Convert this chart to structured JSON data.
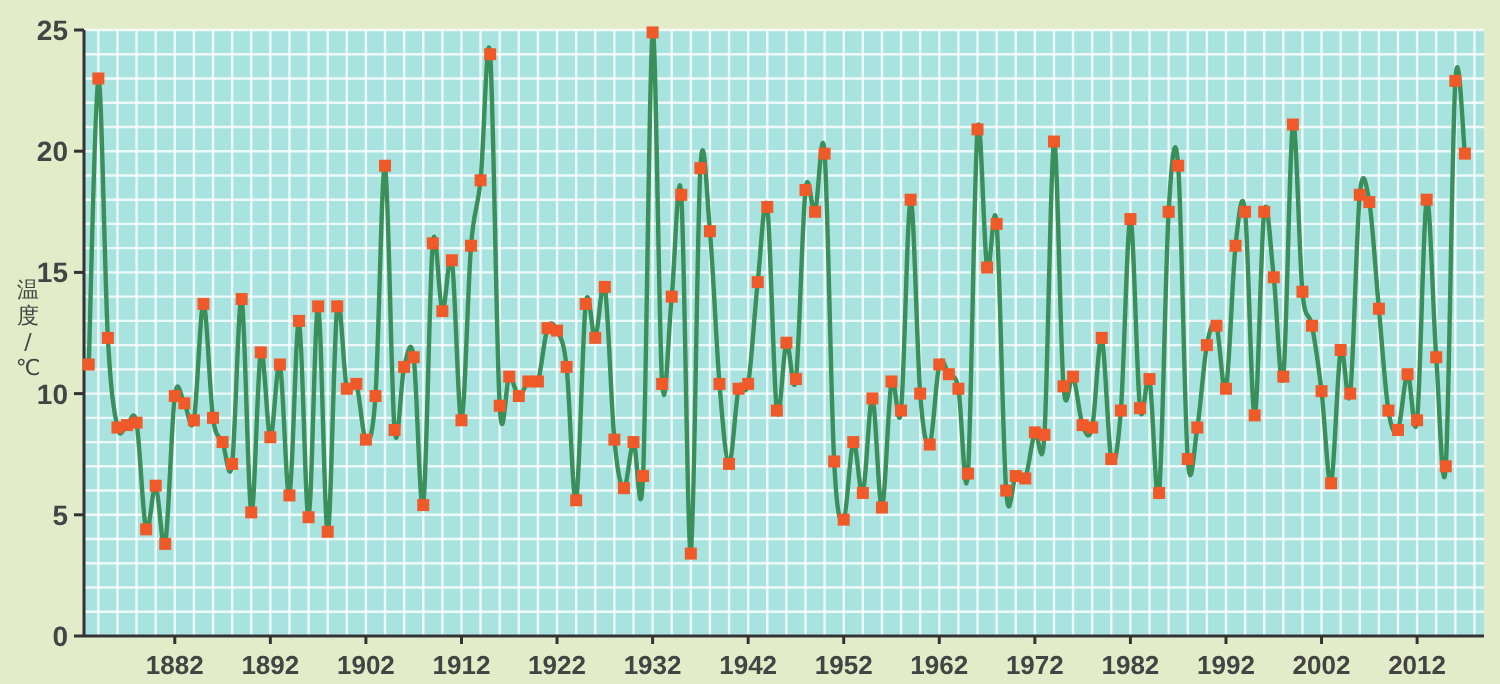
{
  "chart_data": {
    "type": "line",
    "ylabel": "温度/℃",
    "x": [
      1873,
      1874,
      1875,
      1876,
      1877,
      1878,
      1879,
      1880,
      1881,
      1882,
      1883,
      1884,
      1885,
      1886,
      1887,
      1888,
      1889,
      1890,
      1891,
      1892,
      1893,
      1894,
      1895,
      1896,
      1897,
      1898,
      1899,
      1900,
      1901,
      1902,
      1903,
      1904,
      1905,
      1906,
      1907,
      1908,
      1909,
      1910,
      1911,
      1912,
      1913,
      1914,
      1915,
      1916,
      1917,
      1918,
      1919,
      1920,
      1921,
      1922,
      1923,
      1924,
      1925,
      1926,
      1927,
      1928,
      1929,
      1930,
      1931,
      1932,
      1933,
      1934,
      1935,
      1936,
      1937,
      1938,
      1939,
      1940,
      1941,
      1942,
      1943,
      1944,
      1945,
      1946,
      1947,
      1948,
      1949,
      1950,
      1951,
      1952,
      1953,
      1954,
      1955,
      1956,
      1957,
      1958,
      1959,
      1960,
      1961,
      1962,
      1963,
      1964,
      1965,
      1966,
      1967,
      1968,
      1969,
      1970,
      1971,
      1972,
      1973,
      1974,
      1975,
      1976,
      1977,
      1978,
      1979,
      1980,
      1981,
      1982,
      1983,
      1984,
      1985,
      1986,
      1987,
      1988,
      1989,
      1990,
      1991,
      1992,
      1993,
      1994,
      1995,
      1996,
      1997,
      1998,
      1999,
      2000,
      2001,
      2002,
      2003,
      2004,
      2005,
      2006,
      2007,
      2008,
      2009,
      2010,
      2011,
      2012,
      2013,
      2014,
      2015,
      2016,
      2017
    ],
    "series": [
      {
        "color": "#3a8f5a",
        "values": [
          11.2,
          23.0,
          12.3,
          8.6,
          8.7,
          8.8,
          4.4,
          6.2,
          3.8,
          9.9,
          9.6,
          8.9,
          13.7,
          9.0,
          8.0,
          7.1,
          13.9,
          5.1,
          11.7,
          8.2,
          11.2,
          5.8,
          13.0,
          4.9,
          13.6,
          4.3,
          13.6,
          10.2,
          10.4,
          8.1,
          9.9,
          19.4,
          8.5,
          11.1,
          11.5,
          5.4,
          16.2,
          13.4,
          15.5,
          8.9,
          16.1,
          18.8,
          24.0,
          9.5,
          10.7,
          9.9,
          10.5,
          10.5,
          12.7,
          12.6,
          11.1,
          5.6,
          13.7,
          12.3,
          14.4,
          8.1,
          6.1,
          8.0,
          6.6,
          24.9,
          10.4,
          14.0,
          18.2,
          3.4,
          19.3,
          16.7,
          10.4,
          7.1,
          10.2,
          10.4,
          14.6,
          17.7,
          9.3,
          12.1,
          10.6,
          18.4,
          17.5,
          19.9,
          7.2,
          4.8,
          8.0,
          5.9,
          9.8,
          5.3,
          10.5,
          9.3,
          18.0,
          10.0,
          7.9,
          11.2,
          10.8,
          10.2,
          6.7,
          20.9,
          15.2,
          17.0,
          6.0,
          6.6,
          6.5,
          8.4,
          8.3,
          20.4,
          10.3,
          10.7,
          8.7,
          8.6,
          12.3,
          7.3,
          9.3,
          17.2,
          9.4,
          10.6,
          5.9,
          17.5,
          19.4,
          7.3,
          8.6,
          12.0,
          12.8,
          10.2,
          16.1,
          17.5,
          9.1,
          17.5,
          14.8,
          10.7,
          21.1,
          14.2,
          12.8,
          10.1,
          6.3,
          11.8,
          10.0,
          18.2,
          17.9,
          13.5,
          9.3,
          8.5,
          10.8,
          8.9,
          18.0,
          11.5,
          7.0,
          22.9,
          19.9
        ]
      }
    ],
    "xlim": [
      1872.5,
      2019
    ],
    "ylim": [
      0,
      25
    ],
    "xticks": [
      1882,
      1892,
      1902,
      1912,
      1922,
      1932,
      1942,
      1952,
      1962,
      1972,
      1982,
      1992,
      2002,
      2012
    ],
    "yticks": [
      0,
      5,
      10,
      15,
      20,
      25
    ],
    "grid": true,
    "marker": "square",
    "line_style": "solid"
  }
}
